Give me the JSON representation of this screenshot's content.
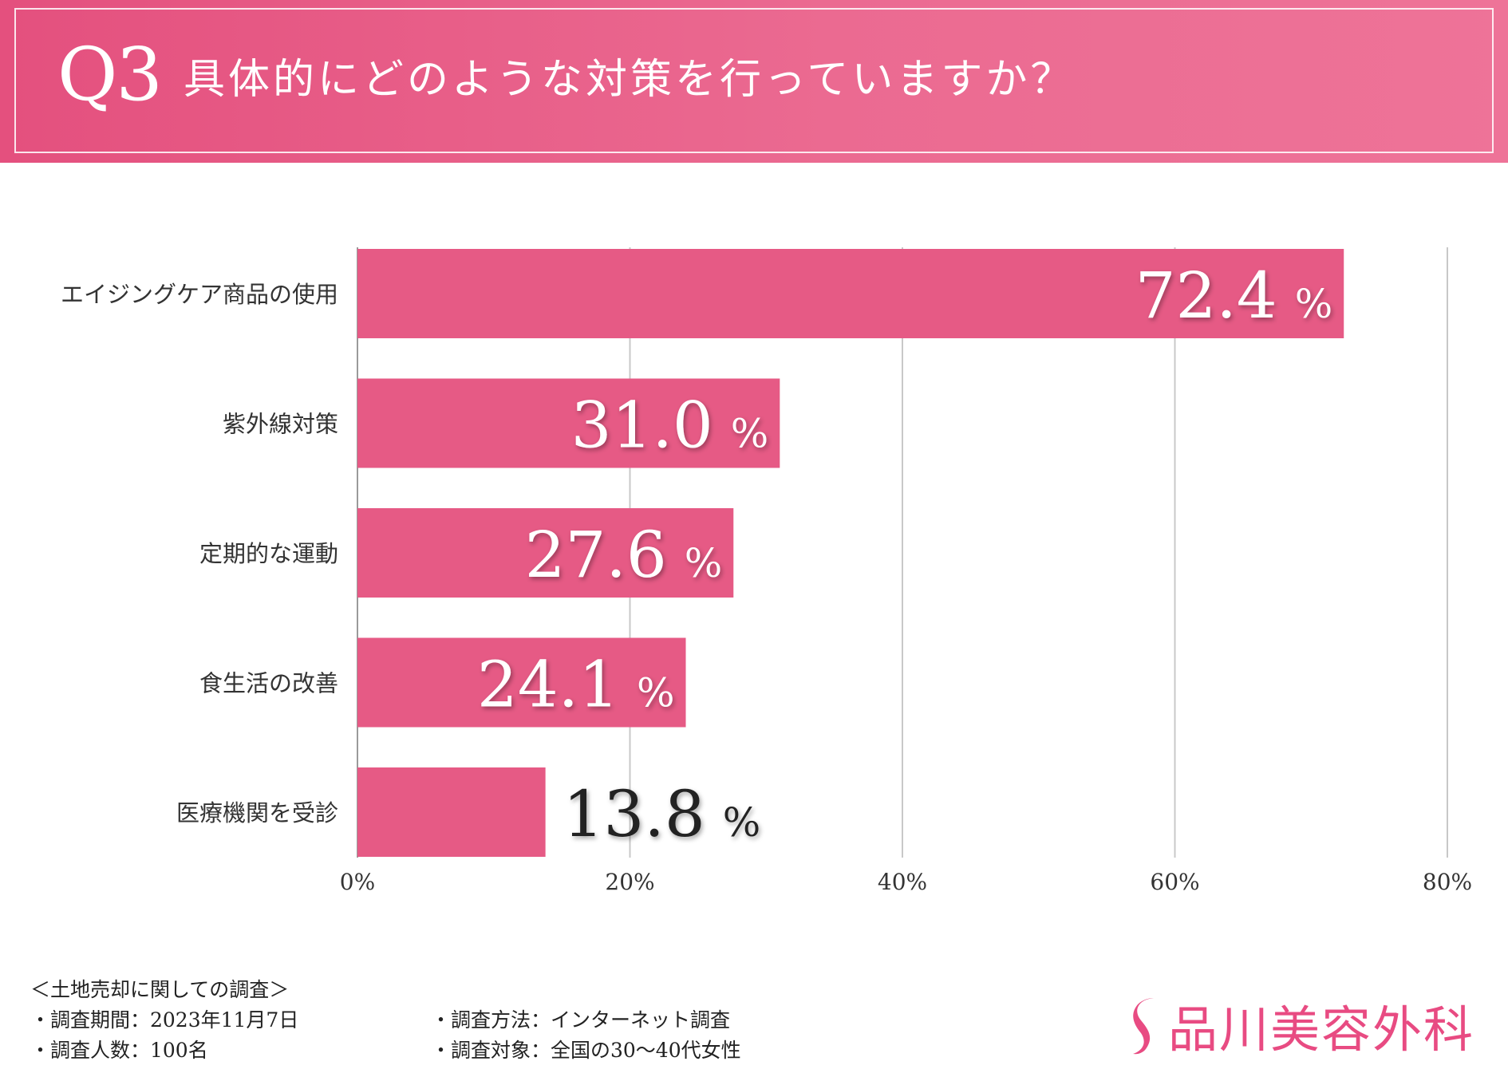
{
  "header": {
    "question_number": "Q3",
    "question_text": "具体的にどのような対策を行っていますか？"
  },
  "colors": {
    "bar": "#e65a85",
    "header": "#e4507e",
    "grid": "#c8c8c8",
    "brand": "#e84b82"
  },
  "chart_data": {
    "type": "bar",
    "orientation": "horizontal",
    "title": "具体的にどのような対策を行っていますか？",
    "categories": [
      "エイジングケア商品の使用",
      "紫外線対策",
      "定期的な運動",
      "食生活の改善",
      "医療機関を受診"
    ],
    "values": [
      72.4,
      31.0,
      27.6,
      24.1,
      13.8
    ],
    "value_labels": [
      "72.4",
      "31.0",
      "27.6",
      "24.1",
      "13.8"
    ],
    "value_unit": "%",
    "xlim": [
      0,
      80
    ],
    "x_ticks": [
      "0%",
      "20%",
      "40%",
      "60%",
      "80%"
    ],
    "grid": true,
    "xlabel": "",
    "ylabel": ""
  },
  "footer": {
    "survey_title": "＜土地売却に関しての調査＞",
    "period": "・調査期間：2023年11月7日",
    "respondents": "・調査人数：100名",
    "method": "・調査方法：インターネット調査",
    "target": "・調査対象：全国の30～40代女性"
  },
  "logo": {
    "name": "品川美容外科",
    "icon": "s-brand-icon"
  }
}
